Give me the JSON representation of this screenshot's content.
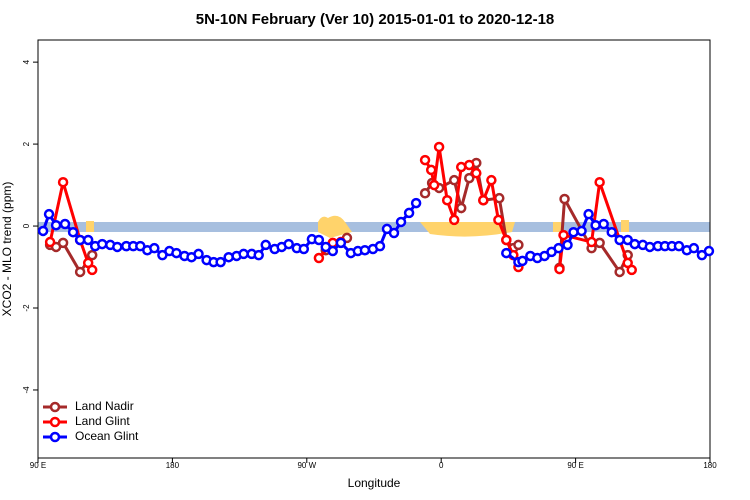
{
  "chart_data": {
    "type": "line",
    "title": "5N-10N February (Ver 10)   2015-01-01 to 2020-12-18",
    "xlabel": "Longitude",
    "ylabel": "XCO2 - MLO trend (ppm)",
    "xlim": [
      90,
      540
    ],
    "ylim": [
      -5.66,
      4.54
    ],
    "xticks": [
      {
        "value": 90,
        "label": "90 E"
      },
      180,
      {
        "value": 270,
        "label": "90 W"
      },
      {
        "value": 360,
        "label": "0"
      },
      {
        "value": 450,
        "label": "90 E"
      },
      {
        "value": 540,
        "label": "180"
      }
    ],
    "yticks": [
      -4,
      -2,
      0,
      2,
      4
    ],
    "legend": "bottom-left",
    "series": [
      {
        "name": "Land Nadir",
        "color": "#a52a2a",
        "x": [
          98.1,
          102.1,
          106.8,
          118.2,
          126.3,
          200,
          282.7,
          287.4,
          296.9,
          320,
          349.2,
          353.9,
          358.6,
          368.7,
          373.4,
          378.8,
          383.5,
          388.2,
          398.9,
          403.6,
          408.3,
          411.7,
          425,
          439.2,
          442.6,
          460.7,
          466.1,
          479.5,
          484.9
        ],
        "values": [
          -0.46,
          -0.51,
          -0.41,
          -1.12,
          -0.71,
          null,
          -0.59,
          -0.44,
          -0.29,
          null,
          0.8,
          1.05,
          0.93,
          1.12,
          0.44,
          1.17,
          1.54,
          0.63,
          0.68,
          -0.34,
          -0.54,
          -0.46,
          null,
          -1.02,
          0.66,
          -0.54,
          -0.41,
          -1.12,
          -0.71
        ]
      },
      {
        "name": "Land Glint",
        "color": "#ff0000",
        "x": [
          98.1,
          106.8,
          118.2,
          123.6,
          126.3,
          200,
          278.1,
          287.4,
          292.8,
          320,
          349.2,
          353.3,
          355.3,
          358.6,
          364,
          368.7,
          373.4,
          378.8,
          383.5,
          388.2,
          393.6,
          398.3,
          403.6,
          408.3,
          411.7,
          425,
          439.2,
          441.9,
          460.7,
          466.1,
          484.9,
          487.6
        ],
        "values": [
          -0.39,
          1.07,
          -0.34,
          -0.9,
          -1.07,
          null,
          -0.78,
          -0.41,
          -0.39,
          null,
          1.61,
          1.37,
          1.0,
          1.93,
          0.63,
          0.15,
          1.44,
          1.49,
          1.29,
          0.63,
          1.12,
          0.15,
          -0.34,
          -0.71,
          -1.0,
          null,
          -1.05,
          -0.22,
          -0.39,
          1.07,
          -0.9,
          -1.07
        ]
      },
      {
        "name": "Ocean Glint",
        "color": "#0000ff",
        "x": [
          93.4,
          97.4,
          102.1,
          108.1,
          113.5,
          118.2,
          123.6,
          128.3,
          133,
          138.4,
          143.1,
          149.1,
          153.8,
          158.5,
          163.2,
          167.9,
          173.3,
          178,
          182.7,
          188.1,
          192.8,
          197.5,
          202.9,
          207.6,
          212.3,
          217.7,
          223,
          227.7,
          233.1,
          237.8,
          242.5,
          248.5,
          253.2,
          257.9,
          263.3,
          268,
          273.4,
          278.1,
          282.7,
          287.4,
          292.8,
          299.5,
          304.2,
          308.9,
          314.3,
          319,
          323.7,
          328.4,
          333.1,
          338.5,
          343.2,
          370,
          403.6,
          411.7,
          414.4,
          419.7,
          424.4,
          429.2,
          433.9,
          438.6,
          444.6,
          448.6,
          454,
          458.7,
          463.4,
          468.8,
          474.2,
          479.5,
          484.9,
          489.6,
          495,
          499.7,
          505.1,
          509.8,
          514.5,
          519.2,
          524.5,
          529.2,
          534.6,
          539.3
        ],
        "values": [
          -0.12,
          0.29,
          0.02,
          0.05,
          -0.15,
          -0.34,
          -0.34,
          -0.49,
          -0.44,
          -0.46,
          -0.51,
          -0.49,
          -0.49,
          -0.49,
          -0.59,
          -0.54,
          -0.71,
          -0.61,
          -0.66,
          -0.73,
          -0.76,
          -0.68,
          -0.83,
          -0.88,
          -0.88,
          -0.76,
          -0.73,
          -0.68,
          -0.68,
          -0.71,
          -0.46,
          -0.56,
          -0.51,
          -0.44,
          -0.54,
          -0.56,
          -0.32,
          -0.34,
          -0.51,
          -0.61,
          -0.41,
          -0.66,
          -0.61,
          -0.59,
          -0.56,
          -0.49,
          -0.07,
          -0.17,
          0.1,
          0.32,
          0.56,
          null,
          -0.66,
          -0.88,
          -0.85,
          -0.73,
          -0.78,
          -0.73,
          -0.63,
          -0.54,
          -0.46,
          -0.15,
          -0.12,
          0.29,
          0.02,
          0.05,
          -0.15,
          -0.34,
          -0.34,
          -0.44,
          -0.46,
          -0.51,
          -0.49,
          -0.49,
          -0.49,
          -0.49,
          -0.59,
          -0.54,
          -0.71,
          -0.61
        ]
      }
    ]
  }
}
